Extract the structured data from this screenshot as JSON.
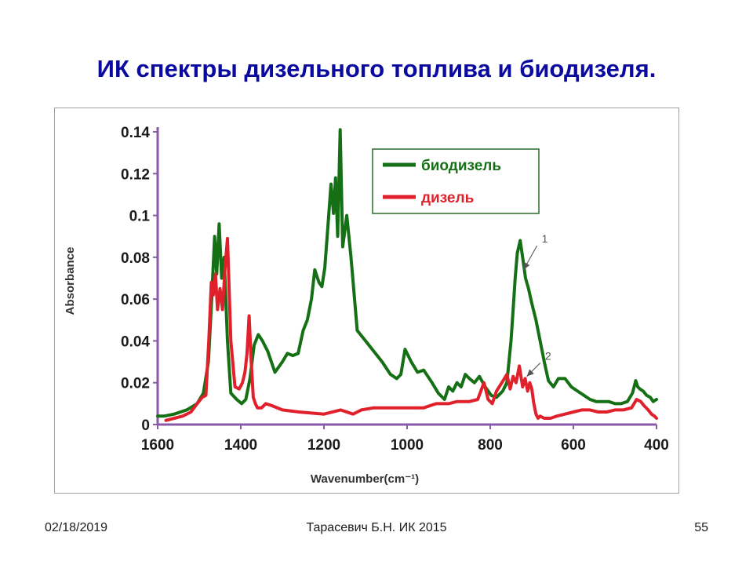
{
  "slide": {
    "title": "ИК спектры дизельного топлива и биодизеля.",
    "footer": {
      "date": "02/18/2019",
      "author": "Тарасевич Б.Н.  ИК 2015",
      "page": "55"
    }
  },
  "chart_data": {
    "type": "line",
    "title": "",
    "xlabel": "Wavenumber(cm⁻¹)",
    "ylabel": "Absorbance",
    "xlim": [
      1600,
      400
    ],
    "ylim": [
      0,
      0.14
    ],
    "x_reversed": true,
    "x_ticks": [
      1600,
      1400,
      1200,
      1000,
      800,
      600,
      400
    ],
    "x_tick_labels": [
      "1600",
      "1400",
      "1200",
      "1000",
      "800",
      "600",
      "400"
    ],
    "y_ticks": [
      0,
      0.02,
      0.04,
      0.06,
      0.08,
      0.1,
      0.12,
      0.14
    ],
    "y_tick_labels": [
      "0",
      "0.02",
      "0.04",
      "0.06",
      "0.08",
      "0.1",
      "0.12",
      "0.14"
    ],
    "highlight_tick": "1200",
    "grid": false,
    "legend": {
      "placement": "top-right"
    },
    "colors": {
      "biodiesel": "#157015",
      "diesel": "#e0202a",
      "axis": "#8a5aa8",
      "highlight_tick": "#1a3aa0"
    },
    "series": [
      {
        "name": "биодизель",
        "x": [
          1600,
          1585,
          1560,
          1530,
          1505,
          1490,
          1478,
          1470,
          1463,
          1458,
          1452,
          1446,
          1440,
          1432,
          1424,
          1410,
          1398,
          1388,
          1378,
          1368,
          1358,
          1348,
          1335,
          1318,
          1300,
          1288,
          1275,
          1262,
          1250,
          1240,
          1230,
          1222,
          1212,
          1205,
          1198,
          1190,
          1183,
          1177,
          1172,
          1167,
          1161,
          1155,
          1145,
          1135,
          1120,
          1100,
          1080,
          1060,
          1040,
          1025,
          1015,
          1005,
          990,
          975,
          960,
          940,
          925,
          910,
          900,
          890,
          880,
          870,
          860,
          850,
          838,
          826,
          812,
          798,
          785,
          770,
          760,
          750,
          745,
          740,
          735,
          728,
          722,
          715,
          708,
          700,
          690,
          680,
          670,
          660,
          648,
          636,
          620,
          605,
          590,
          575,
          560,
          545,
          530,
          515,
          500,
          485,
          470,
          458,
          450,
          445,
          440,
          432,
          424,
          415,
          408,
          400
        ],
        "y": [
          0.004,
          0.004,
          0.005,
          0.007,
          0.01,
          0.015,
          0.03,
          0.06,
          0.09,
          0.072,
          0.096,
          0.07,
          0.08,
          0.04,
          0.015,
          0.012,
          0.01,
          0.012,
          0.022,
          0.038,
          0.043,
          0.04,
          0.035,
          0.025,
          0.03,
          0.034,
          0.033,
          0.034,
          0.045,
          0.05,
          0.06,
          0.074,
          0.068,
          0.066,
          0.075,
          0.096,
          0.115,
          0.101,
          0.118,
          0.09,
          0.141,
          0.085,
          0.1,
          0.08,
          0.045,
          0.04,
          0.035,
          0.03,
          0.024,
          0.022,
          0.024,
          0.036,
          0.03,
          0.025,
          0.026,
          0.02,
          0.015,
          0.012,
          0.018,
          0.016,
          0.02,
          0.018,
          0.024,
          0.022,
          0.02,
          0.023,
          0.018,
          0.014,
          0.013,
          0.016,
          0.02,
          0.04,
          0.055,
          0.07,
          0.082,
          0.088,
          0.08,
          0.07,
          0.065,
          0.058,
          0.05,
          0.04,
          0.03,
          0.021,
          0.018,
          0.022,
          0.022,
          0.018,
          0.016,
          0.014,
          0.012,
          0.011,
          0.011,
          0.011,
          0.01,
          0.01,
          0.011,
          0.015,
          0.021,
          0.018,
          0.017,
          0.016,
          0.014,
          0.013,
          0.011,
          0.012
        ]
      },
      {
        "name": "дизель",
        "x": [
          1580,
          1560,
          1540,
          1520,
          1505,
          1493,
          1484,
          1477,
          1471,
          1466,
          1461,
          1456,
          1450,
          1444,
          1438,
          1432,
          1424,
          1414,
          1404,
          1396,
          1390,
          1385,
          1380,
          1375,
          1370,
          1365,
          1360,
          1350,
          1340,
          1325,
          1300,
          1260,
          1200,
          1160,
          1130,
          1110,
          1080,
          1040,
          1000,
          960,
          930,
          900,
          880,
          850,
          830,
          815,
          805,
          795,
          785,
          772,
          760,
          752,
          745,
          738,
          730,
          722,
          716,
          710,
          705,
          700,
          695,
          690,
          685,
          680,
          670,
          655,
          640,
          620,
          600,
          580,
          560,
          540,
          520,
          500,
          480,
          460,
          448,
          438,
          430,
          420,
          412,
          405,
          400
        ],
        "y": [
          0.002,
          0.003,
          0.004,
          0.006,
          0.01,
          0.013,
          0.014,
          0.04,
          0.068,
          0.062,
          0.072,
          0.055,
          0.065,
          0.055,
          0.075,
          0.089,
          0.04,
          0.018,
          0.017,
          0.02,
          0.025,
          0.034,
          0.052,
          0.03,
          0.013,
          0.01,
          0.008,
          0.008,
          0.01,
          0.009,
          0.007,
          0.006,
          0.005,
          0.007,
          0.005,
          0.007,
          0.008,
          0.008,
          0.008,
          0.008,
          0.01,
          0.01,
          0.011,
          0.011,
          0.012,
          0.02,
          0.012,
          0.01,
          0.016,
          0.02,
          0.024,
          0.017,
          0.023,
          0.02,
          0.028,
          0.018,
          0.022,
          0.016,
          0.02,
          0.017,
          0.01,
          0.005,
          0.003,
          0.004,
          0.003,
          0.003,
          0.004,
          0.005,
          0.006,
          0.007,
          0.007,
          0.006,
          0.006,
          0.007,
          0.007,
          0.008,
          0.012,
          0.011,
          0.009,
          0.007,
          0.005,
          0.004,
          0.003
        ]
      }
    ],
    "annotations": [
      {
        "text": "1",
        "x": 720,
        "y": 0.074,
        "label_x": 680,
        "label_y": 0.087
      },
      {
        "text": "2",
        "x": 712,
        "y": 0.023,
        "label_x": 672,
        "label_y": 0.031
      }
    ]
  }
}
